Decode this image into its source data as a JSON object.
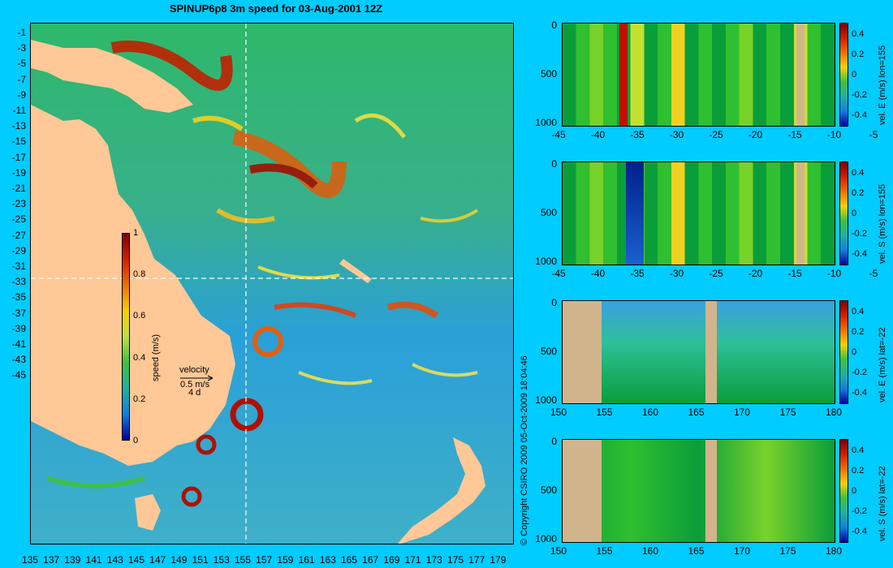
{
  "title": "SPINUP6p8 3m speed for 03-Aug-2001 12Z",
  "copyright": "© Copyright CSIRO 2009    05-Oct-2009 18:04:46",
  "map": {
    "lat_ticks": [
      "-1",
      "-3",
      "-5",
      "-7",
      "-9",
      "-11",
      "-13",
      "-15",
      "-17",
      "-19",
      "-21",
      "-23",
      "-25",
      "-27",
      "-29",
      "-31",
      "-33",
      "-35",
      "-37",
      "-39",
      "-41",
      "-43",
      "-45"
    ],
    "lon_ticks": [
      "135",
      "137",
      "139",
      "141",
      "143",
      "145",
      "147",
      "149",
      "151",
      "153",
      "155",
      "157",
      "159",
      "161",
      "163",
      "165",
      "167",
      "169",
      "171",
      "173",
      "175",
      "177",
      "179"
    ],
    "colorbar": {
      "label": "speed (m/s)",
      "ticks": [
        "1",
        "0.8",
        "0.6",
        "0.4",
        "0.2",
        "0"
      ]
    },
    "velocity_key": {
      "title": "velocity",
      "speed": "0.5 m/s",
      "time": "4 d"
    }
  },
  "sections": [
    {
      "id": "lon-e",
      "cbar_label": "vel. E (m/s) lon=155",
      "y_ticks": [
        "0",
        "500",
        "1000"
      ],
      "x_ticks": [
        "-45",
        "-40",
        "-35",
        "-30",
        "-25",
        "-20",
        "-15",
        "-10",
        "-5"
      ],
      "c_ticks": [
        "0.4",
        "0.2",
        "0",
        "-0.2",
        "-0.4"
      ]
    },
    {
      "id": "lon-s",
      "cbar_label": "vel. S (m/s) lon=155",
      "y_ticks": [
        "0",
        "500",
        "1000"
      ],
      "x_ticks": [
        "-45",
        "-40",
        "-35",
        "-30",
        "-25",
        "-20",
        "-15",
        "-10",
        "-5"
      ],
      "c_ticks": [
        "0.4",
        "0.2",
        "0",
        "-0.2",
        "-0.4"
      ]
    },
    {
      "id": "lat-e",
      "cbar_label": "vel. E (m/s) lat=-22",
      "y_ticks": [
        "0",
        "500",
        "1000"
      ],
      "x_ticks": [
        "150",
        "155",
        "160",
        "165",
        "170",
        "175",
        "180"
      ],
      "c_ticks": [
        "0.4",
        "0.2",
        "0",
        "-0.2",
        "-0.4"
      ]
    },
    {
      "id": "lat-s",
      "cbar_label": "vel. S (m/s) lat=-22",
      "y_ticks": [
        "0",
        "500",
        "1000"
      ],
      "x_ticks": [
        "150",
        "155",
        "160",
        "165",
        "170",
        "175",
        "180"
      ],
      "c_ticks": [
        "0.4",
        "0.2",
        "0",
        "-0.2",
        "-0.4"
      ]
    }
  ],
  "colors": {
    "background": "#00ccff",
    "land": "#ffc896",
    "section_land": "#d2b48c",
    "ocean_mid": "#1fa9e0"
  }
}
